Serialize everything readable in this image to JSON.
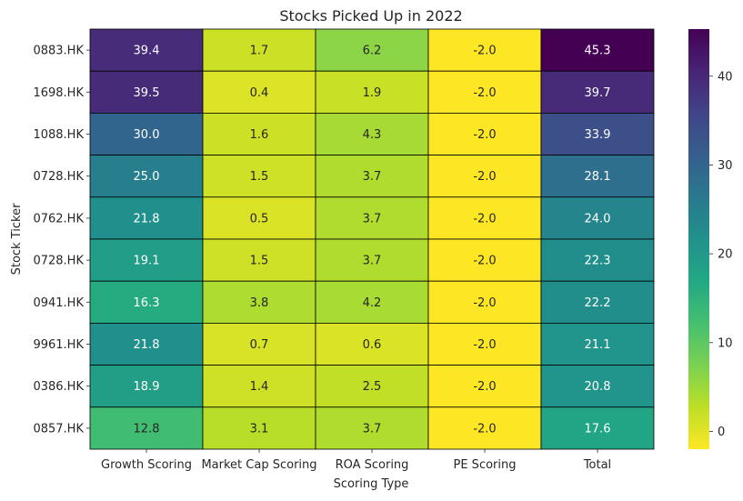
{
  "chart_data": {
    "type": "heatmap",
    "title": "Stocks Picked Up in 2022",
    "xlabel": "Scoring Type",
    "ylabel": "Stock Ticker",
    "columns": [
      "Growth Scoring",
      "Market Cap Scoring",
      "ROA Scoring",
      "PE Scoring",
      "Total"
    ],
    "rows": [
      "0883.HK",
      "1698.HK",
      "1088.HK",
      "0728.HK",
      "0762.HK",
      "0728.HK",
      "0941.HK",
      "9961.HK",
      "0386.HK",
      "0857.HK"
    ],
    "values": [
      [
        39.4,
        1.7,
        6.2,
        -2.0,
        45.3
      ],
      [
        39.5,
        0.4,
        1.9,
        -2.0,
        39.7
      ],
      [
        30.0,
        1.6,
        4.3,
        -2.0,
        33.9
      ],
      [
        25.0,
        1.5,
        3.7,
        -2.0,
        28.1
      ],
      [
        21.8,
        0.5,
        3.7,
        -2.0,
        24.0
      ],
      [
        19.1,
        1.5,
        3.7,
        -2.0,
        22.3
      ],
      [
        16.3,
        3.8,
        4.2,
        -2.0,
        22.2
      ],
      [
        21.8,
        0.7,
        0.6,
        -2.0,
        21.1
      ],
      [
        18.9,
        1.4,
        2.5,
        -2.0,
        20.8
      ],
      [
        12.8,
        3.1,
        3.7,
        -2.0,
        17.6
      ]
    ],
    "value_format": "1 decimal",
    "colormap": "viridis_r",
    "vmin": -2.0,
    "vmax": 45.3,
    "colorbar_ticks": [
      0,
      10,
      20,
      30,
      40
    ],
    "cell_border_color": "#000000",
    "annotation_colors": {
      "dark_text": "#262626",
      "light_text": "#ffffff"
    }
  }
}
